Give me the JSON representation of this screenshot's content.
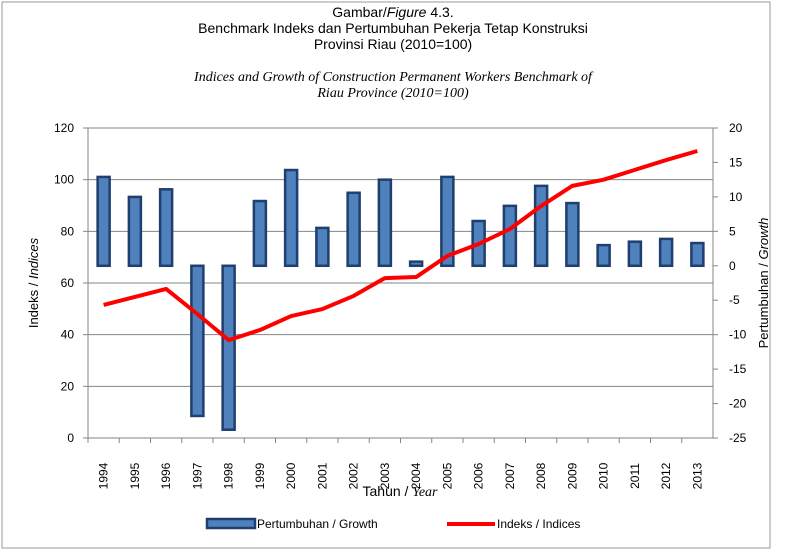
{
  "chart_data": {
    "type": "bar_line",
    "title": [
      [
        {
          "text": "Gambar/"
        },
        {
          "text": "Figure",
          "italic": true
        },
        {
          "text": " 4.3."
        }
      ],
      [
        {
          "text": "Benchmark Indeks dan Pertumbuhan Pekerja Tetap Konstruksi"
        }
      ],
      [
        {
          "text": "Provinsi Riau (2010=100)"
        }
      ]
    ],
    "subtitle": [
      "Indices and Growth of Construction Permanent Workers Benchmark of",
      "Riau Province (2010=100)"
    ],
    "xlabel": [
      {
        "text": "Tahun / "
      },
      {
        "text": "Year",
        "italic": true,
        "serif": true
      }
    ],
    "ylabel": [
      {
        "text": "Indeks / "
      },
      {
        "text": "Indices",
        "italic": true
      }
    ],
    "y2label": [
      {
        "text": "Pertumbuhan / "
      },
      {
        "text": "Growth",
        "italic": true
      }
    ],
    "categories": [
      "1994",
      "1995",
      "1996",
      "1997",
      "1998",
      "1999",
      "2000",
      "2001",
      "2002",
      "2003",
      "2004",
      "2005",
      "2006",
      "2007",
      "2008",
      "2009",
      "2010",
      "2011",
      "2012",
      "2013"
    ],
    "series": [
      {
        "name": "Pertumbuhan / Growth",
        "kind": "bar",
        "axis": "y2",
        "color": "#4f81bd",
        "edge": "#1f3f6e",
        "values": [
          12.9,
          10.0,
          11.1,
          -21.8,
          -23.8,
          9.4,
          13.9,
          5.5,
          10.6,
          12.5,
          0.6,
          12.9,
          6.5,
          8.7,
          11.6,
          9.1,
          3.0,
          3.5,
          3.9,
          3.3
        ]
      },
      {
        "name": "Indeks / Indices",
        "kind": "line",
        "axis": "y",
        "color": "#ff0000",
        "values": [
          51.5,
          54.6,
          57.7,
          48.0,
          37.9,
          41.8,
          47.2,
          49.9,
          55.0,
          61.9,
          62.3,
          70.5,
          75.1,
          80.9,
          89.8,
          97.6,
          100,
          103.8,
          107.6,
          111.1
        ]
      }
    ],
    "ylim": [
      0,
      120
    ],
    "yticks": [
      0,
      20,
      40,
      60,
      80,
      100,
      120
    ],
    "y2lim": [
      -25,
      20
    ],
    "y2ticks": [
      -25,
      -20,
      -15,
      -10,
      -5,
      0,
      5,
      10,
      15,
      20
    ],
    "grid": true,
    "legend": "bottom"
  }
}
